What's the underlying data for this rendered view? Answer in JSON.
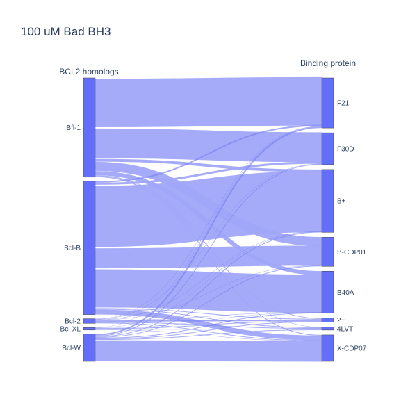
{
  "chart_data": {
    "type": "sankey",
    "title": "100 uM Bad BH3",
    "source_header": "BCL2 homologs",
    "target_header": "Binding protein",
    "colors": {
      "node": "#636efa",
      "link": "#a0a6f8",
      "link_opacity": 0.95,
      "thin_link": "#7c84f0"
    },
    "sources": [
      {
        "label": "Bfl-1"
      },
      {
        "label": "Bcl-B"
      },
      {
        "label": "Bcl-2"
      },
      {
        "label": "Bcl-XL"
      },
      {
        "label": "Bcl-W"
      }
    ],
    "targets": [
      {
        "label": "F21"
      },
      {
        "label": "F30D"
      },
      {
        "label": "B+"
      },
      {
        "label": "B-CDP01"
      },
      {
        "label": "B40A"
      },
      {
        "label": "2+"
      },
      {
        "label": "4LVT"
      },
      {
        "label": "X-CDP07"
      }
    ],
    "links": [
      {
        "source": "Bfl-1",
        "target": "F21",
        "value": 70
      },
      {
        "source": "Bfl-1",
        "target": "F30D",
        "value": 43
      },
      {
        "source": "Bfl-1",
        "target": "B+",
        "value": 4
      },
      {
        "source": "Bfl-1",
        "target": "B-CDP01",
        "value": 13
      },
      {
        "source": "Bfl-1",
        "target": "B40A",
        "value": 6
      },
      {
        "source": "Bfl-1",
        "target": "2+",
        "value": 1
      },
      {
        "source": "Bfl-1",
        "target": "4LVT",
        "value": 0.5
      },
      {
        "source": "Bfl-1",
        "target": "X-CDP07",
        "value": 1
      },
      {
        "source": "Bcl-B",
        "target": "F21",
        "value": 2
      },
      {
        "source": "Bcl-B",
        "target": "F30D",
        "value": 3
      },
      {
        "source": "Bcl-B",
        "target": "B+",
        "value": 88
      },
      {
        "source": "Bcl-B",
        "target": "B-CDP01",
        "value": 29
      },
      {
        "source": "Bcl-B",
        "target": "B40A",
        "value": 55
      },
      {
        "source": "Bcl-B",
        "target": "2+",
        "value": 1
      },
      {
        "source": "Bcl-B",
        "target": "4LVT",
        "value": 1
      },
      {
        "source": "Bcl-B",
        "target": "X-CDP07",
        "value": 7
      },
      {
        "source": "Bcl-2",
        "target": "F21",
        "value": 0.5
      },
      {
        "source": "Bcl-2",
        "target": "F30D",
        "value": 0.5
      },
      {
        "source": "Bcl-2",
        "target": "B+",
        "value": 0.5
      },
      {
        "source": "Bcl-2",
        "target": "B-CDP01",
        "value": 0.5
      },
      {
        "source": "Bcl-2",
        "target": "B40A",
        "value": 0.5
      },
      {
        "source": "Bcl-2",
        "target": "2+",
        "value": 2
      },
      {
        "source": "Bcl-2",
        "target": "4LVT",
        "value": 1
      },
      {
        "source": "Bcl-2",
        "target": "X-CDP07",
        "value": 1
      },
      {
        "source": "Bcl-XL",
        "target": "F21",
        "value": 0.3
      },
      {
        "source": "Bcl-XL",
        "target": "B+",
        "value": 0.3
      },
      {
        "source": "Bcl-XL",
        "target": "B40A",
        "value": 0.3
      },
      {
        "source": "Bcl-XL",
        "target": "2+",
        "value": 1
      },
      {
        "source": "Bcl-XL",
        "target": "4LVT",
        "value": 1
      },
      {
        "source": "Bcl-XL",
        "target": "X-CDP07",
        "value": 0.5
      },
      {
        "source": "Bcl-W",
        "target": "F21",
        "value": 2
      },
      {
        "source": "Bcl-W",
        "target": "F30D",
        "value": 1
      },
      {
        "source": "Bcl-W",
        "target": "B+",
        "value": 1
      },
      {
        "source": "Bcl-W",
        "target": "B-CDP01",
        "value": 1
      },
      {
        "source": "Bcl-W",
        "target": "B40A",
        "value": 1
      },
      {
        "source": "Bcl-W",
        "target": "2+",
        "value": 1
      },
      {
        "source": "Bcl-W",
        "target": "4LVT",
        "value": 1
      },
      {
        "source": "Bcl-W",
        "target": "X-CDP07",
        "value": 30
      }
    ]
  }
}
